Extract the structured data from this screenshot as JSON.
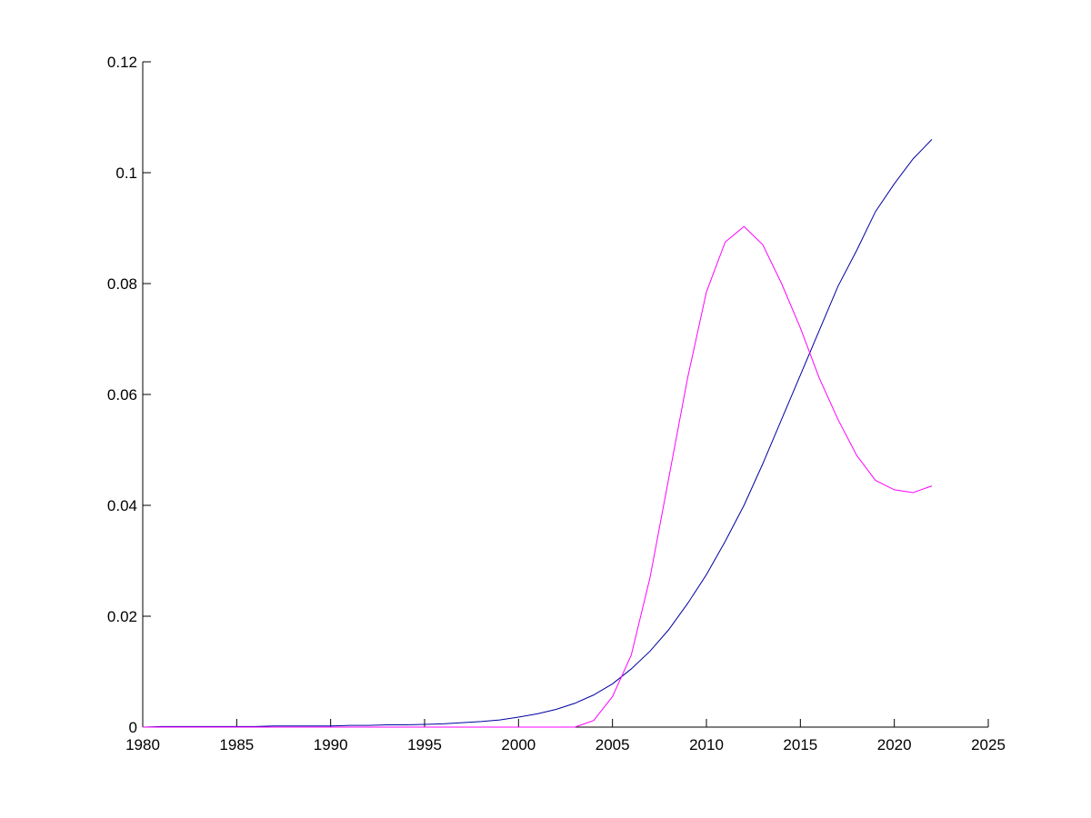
{
  "chart_data": {
    "type": "line",
    "x": [
      1980,
      1981,
      1982,
      1983,
      1984,
      1985,
      1986,
      1987,
      1988,
      1989,
      1990,
      1991,
      1992,
      1993,
      1994,
      1995,
      1996,
      1997,
      1998,
      1999,
      2000,
      2001,
      2002,
      2003,
      2004,
      2005,
      2006,
      2007,
      2008,
      2009,
      2010,
      2011,
      2012,
      2013,
      2014,
      2015,
      2016,
      2017,
      2018,
      2019,
      2020,
      2021,
      2022
    ],
    "series": [
      {
        "color": "#0000a0",
        "values": [
          0,
          0.0001,
          0.0001,
          0.0001,
          0.0001,
          0.0001,
          0.0001,
          0.0002,
          0.0002,
          0.0002,
          0.0002,
          0.0003,
          0.0003,
          0.0004,
          0.0004,
          0.0005,
          0.0006,
          0.0008,
          0.001,
          0.0013,
          0.0018,
          0.0024,
          0.0032,
          0.0043,
          0.0058,
          0.0078,
          0.0105,
          0.0137,
          0.0176,
          0.0223,
          0.0275,
          0.0335,
          0.04,
          0.0475,
          0.0555,
          0.0635,
          0.0715,
          0.0795,
          0.086,
          0.093,
          0.098,
          0.1025,
          0.106
        ]
      },
      {
        "color": "#ff00ff",
        "values": [
          0,
          0,
          0,
          0,
          0,
          0,
          0,
          0,
          0,
          0,
          0,
          0,
          0,
          0,
          0,
          0,
          0,
          0,
          0,
          0,
          0,
          0,
          0,
          0,
          0.0012,
          0.0055,
          0.013,
          0.027,
          0.045,
          0.063,
          0.0785,
          0.0875,
          0.0903,
          0.087,
          0.08,
          0.072,
          0.063,
          0.0555,
          0.049,
          0.0445,
          0.0428,
          0.0423,
          0.0435
        ]
      }
    ],
    "xlim": [
      1980,
      2025
    ],
    "xticks": [
      1980,
      1985,
      1990,
      1995,
      2000,
      2005,
      2010,
      2015,
      2020,
      2025
    ],
    "ylim": [
      0,
      0.12
    ],
    "yticks": [
      0,
      0.02,
      0.04,
      0.06,
      0.08,
      0.1,
      0.12
    ]
  }
}
